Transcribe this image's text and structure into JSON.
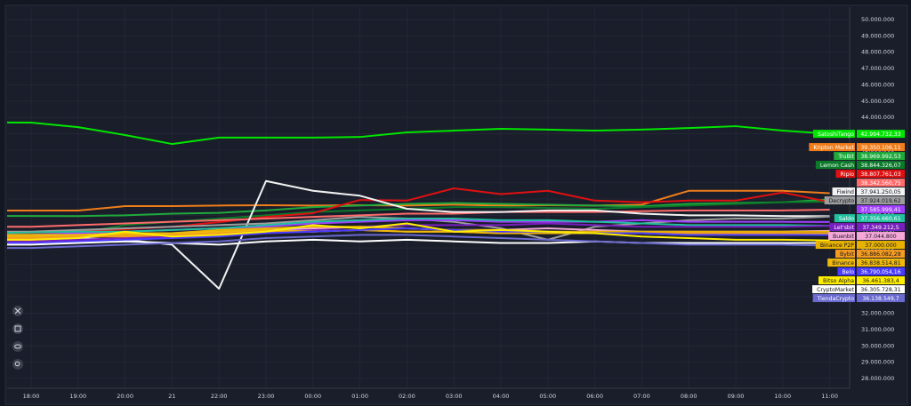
{
  "chart_data": {
    "type": "line",
    "categories": [
      null,
      "18:00",
      "19:00",
      "20:00",
      "21",
      "22:00",
      "23:00",
      "00:00",
      "01:00",
      "02:00",
      "03:00",
      "04:00",
      "05:00",
      "06:00",
      "07:00",
      "08:00",
      "09:00",
      "10:00",
      "11:00"
    ],
    "ylim": [
      27400000,
      50760000
    ],
    "yticks": [
      {
        "value": 28000000,
        "label": "28.000.000"
      },
      {
        "value": 29000000,
        "label": "29.000.000"
      },
      {
        "value": 30000000,
        "label": "30.000.000"
      },
      {
        "value": 31000000,
        "label": "31.000.000"
      },
      {
        "value": 32000000,
        "label": "32.000.000"
      },
      {
        "value": 33000000,
        "label": "33.000.000"
      },
      {
        "value": 34000000,
        "label": "34.000.000"
      },
      {
        "value": 35000000,
        "label": "35.000.000"
      },
      {
        "value": 36000000,
        "label": "36.000.000"
      },
      {
        "value": 37000000,
        "label": "37.000.000"
      },
      {
        "value": 38000000,
        "label": "38.000.000"
      },
      {
        "value": 39000000,
        "label": "39.000.000"
      },
      {
        "value": 40000000,
        "label": "40.000.000"
      },
      {
        "value": 41000000,
        "label": "41.000.000"
      },
      {
        "value": 42000000,
        "label": "42.000.000"
      },
      {
        "value": 43000000,
        "label": "43.000.000"
      },
      {
        "value": 44000000,
        "label": "44.000.000"
      },
      {
        "value": 45000000,
        "label": "45.000.000"
      },
      {
        "value": 46000000,
        "label": "46.000.000"
      },
      {
        "value": 47000000,
        "label": "47.000.000"
      },
      {
        "value": 48000000,
        "label": "48.000.000"
      },
      {
        "value": 49000000,
        "label": "49.000.000"
      },
      {
        "value": 50000000,
        "label": "50.000.000"
      }
    ],
    "grid": true,
    "series": [
      {
        "name": "SatoshiTango",
        "color": "#00e600",
        "values": [
          43700000,
          43680000,
          43400000,
          42920000,
          42370000,
          42760000,
          42760000,
          42760000,
          42800000,
          43080000,
          43190000,
          43300000,
          43250000,
          43190000,
          43250000,
          43350000,
          43460000,
          43190000,
          42994732.33
        ],
        "value_labels": [
          null,
          null,
          null,
          null,
          null,
          null,
          null,
          null,
          null,
          null,
          null,
          null,
          null,
          null,
          null,
          null,
          null,
          null,
          "42.994.732,33"
        ]
      },
      {
        "name": "Kripton Market",
        "color": "#f07d1a",
        "values": [
          38290000,
          38290000,
          38290000,
          38560000,
          38560000,
          38600000,
          38620000,
          38600000,
          38620000,
          38600000,
          38650000,
          38600000,
          38620000,
          38600000,
          38650000,
          39500000,
          39500000,
          39500000,
          39350106.11
        ],
        "value_labels": [
          null,
          null,
          null,
          null,
          null,
          null,
          null,
          null,
          null,
          null,
          null,
          null,
          null,
          null,
          null,
          null,
          null,
          null,
          "39.350.106,11"
        ]
      },
      {
        "name": "TruBit",
        "color": "#1faa3c",
        "values": [
          37950000,
          37960000,
          37950000,
          38000000,
          38100000,
          38150000,
          38300000,
          38500000,
          38600000,
          38700000,
          38750000,
          38700000,
          38650000,
          38600000,
          38550000,
          38700000,
          38750000,
          38800000,
          38969992.53
        ],
        "value_labels": [
          null,
          null,
          null,
          null,
          null,
          null,
          null,
          null,
          null,
          null,
          null,
          null,
          null,
          null,
          null,
          null,
          null,
          null,
          "38.969.992,53"
        ]
      },
      {
        "name": "Lemon Cash",
        "color": "#0b7a2a",
        "values": [
          36200000,
          36300000,
          36900000,
          37400000,
          37600000,
          37800000,
          38000000,
          38200000,
          38300000,
          38400000,
          38500000,
          38500000,
          38450000,
          38400000,
          38500000,
          38600000,
          38700000,
          38800000,
          38844326.07
        ],
        "value_labels": [
          null,
          null,
          null,
          null,
          null,
          null,
          null,
          null,
          null,
          null,
          null,
          null,
          null,
          null,
          null,
          null,
          null,
          null,
          "38.844.326,07"
        ]
      },
      {
        "name": "Ripio",
        "color": "#e01010",
        "values": [
          36900000,
          36930000,
          37000000,
          37150000,
          37300000,
          37580000,
          37900000,
          38130000,
          38940000,
          38900000,
          39650000,
          39300000,
          39500000,
          38900000,
          38800000,
          38900000,
          38900000,
          39400000,
          38807761.03
        ],
        "value_labels": [
          null,
          null,
          null,
          null,
          null,
          null,
          null,
          null,
          null,
          null,
          null,
          null,
          null,
          null,
          null,
          null,
          null,
          null,
          "38.807.761,03"
        ]
      },
      {
        "name": null,
        "color": "#ff6b6b",
        "values": [
          37300000,
          37300000,
          37400000,
          37500000,
          37600000,
          37700000,
          37800000,
          37900000,
          38000000,
          38100000,
          38100000,
          38200000,
          38200000,
          38200000,
          38250000,
          38300000,
          38300000,
          38300000,
          38342560.75
        ],
        "value_labels": [
          null,
          null,
          null,
          null,
          null,
          null,
          null,
          null,
          null,
          null,
          null,
          null,
          null,
          null,
          null,
          null,
          null,
          null,
          "38.342.560,75"
        ]
      },
      {
        "name": "Fiwind",
        "color": "#f2f2f2",
        "values": [
          36500000,
          36500000,
          36600000,
          36500000,
          36200000,
          33500000,
          40100000,
          39500000,
          39200000,
          38400000,
          38200000,
          38200000,
          38300000,
          38300000,
          38100000,
          38000000,
          38000000,
          37950000,
          37941250.05
        ],
        "value_labels": [
          null,
          null,
          null,
          null,
          null,
          null,
          null,
          null,
          null,
          null,
          null,
          null,
          null,
          null,
          null,
          null,
          null,
          null,
          "37.941.250,05"
        ]
      },
      {
        "name": "Decrypto",
        "color": "#9e9e9e",
        "values": [
          37000000,
          37000000,
          37100000,
          37200000,
          37300000,
          37400000,
          37500000,
          37700000,
          37900000,
          37800000,
          37600000,
          37200000,
          36500000,
          37300000,
          37500000,
          37700000,
          37800000,
          37800000,
          37924019.62
        ],
        "value_labels": [
          null,
          null,
          null,
          null,
          null,
          null,
          null,
          null,
          null,
          null,
          null,
          null,
          null,
          null,
          null,
          null,
          null,
          null,
          "37.924.019,62"
        ]
      },
      {
        "name": null,
        "color": "#a040ff",
        "values": [
          36800000,
          36800000,
          36900000,
          37000000,
          37100000,
          37200000,
          37300000,
          37500000,
          37600000,
          37700000,
          37700000,
          37600000,
          37600000,
          37600000,
          37700000,
          37600000,
          37600000,
          37600000,
          37585999.41
        ],
        "value_labels": [
          null,
          null,
          null,
          null,
          null,
          null,
          null,
          null,
          null,
          null,
          null,
          null,
          null,
          null,
          null,
          null,
          null,
          null,
          "37.585.999,41"
        ]
      },
      {
        "name": "Saldo",
        "color": "#20c0a0",
        "values": [
          36900000,
          36950000,
          37000000,
          37000000,
          37100000,
          37200000,
          37400000,
          37600000,
          37700000,
          37800000,
          37800000,
          37700000,
          37700000,
          37600000,
          37500000,
          37400000,
          37400000,
          37400000,
          37356660.61
        ],
        "value_labels": [
          null,
          null,
          null,
          null,
          null,
          null,
          null,
          null,
          null,
          null,
          null,
          null,
          null,
          null,
          null,
          null,
          null,
          null,
          "37.356.660,61"
        ]
      },
      {
        "name": "Let'sbit",
        "color": "#7a1fbf",
        "values": [
          36400000,
          36400000,
          36500000,
          36600000,
          36700000,
          36800000,
          37000000,
          37100000,
          37300000,
          37400000,
          37400000,
          37400000,
          37500000,
          37400000,
          37300000,
          37300000,
          37300000,
          37300000,
          37349212.5
        ],
        "value_labels": [
          null,
          null,
          null,
          null,
          null,
          null,
          null,
          null,
          null,
          null,
          null,
          null,
          null,
          null,
          null,
          null,
          null,
          null,
          "37.349.212,5"
        ]
      },
      {
        "name": "Buenbit",
        "color": "#f5a8d8",
        "values": [
          36600000,
          36600000,
          36700000,
          36800000,
          36800000,
          36900000,
          37100000,
          37200000,
          37300000,
          37200000,
          37100000,
          37100000,
          37200000,
          37100000,
          37000000,
          37000000,
          37000000,
          37000000,
          37044800
        ],
        "value_labels": [
          null,
          null,
          null,
          null,
          null,
          null,
          null,
          null,
          null,
          null,
          null,
          null,
          null,
          null,
          null,
          null,
          null,
          null,
          "37.044.800"
        ]
      },
      {
        "name": "Binance P2P",
        "color": "#e8b200",
        "values": [
          36700000,
          36700000,
          36800000,
          36800000,
          36900000,
          37100000,
          37200000,
          37300000,
          37300000,
          37200000,
          37100000,
          37100000,
          37000000,
          37000000,
          37000000,
          37000000,
          37000000,
          37000000,
          37000000
        ],
        "value_labels": [
          null,
          null,
          null,
          null,
          null,
          null,
          null,
          null,
          null,
          null,
          null,
          null,
          null,
          null,
          null,
          null,
          null,
          null,
          "37.000.000"
        ]
      },
      {
        "name": "Bybit",
        "color": "#f59b20",
        "values": [
          36600000,
          36600000,
          36700000,
          36700000,
          36800000,
          36900000,
          37000000,
          37000000,
          37100000,
          37000000,
          37000000,
          36900000,
          36900000,
          36900000,
          36900000,
          36900000,
          36900000,
          36900000,
          36886082.28
        ],
        "value_labels": [
          null,
          null,
          null,
          null,
          null,
          null,
          null,
          null,
          null,
          null,
          null,
          null,
          null,
          null,
          null,
          null,
          null,
          null,
          "36.886.082,28"
        ]
      },
      {
        "name": "Binance",
        "color": "#f0b90b",
        "values": [
          36800000,
          36800000,
          36800000,
          36900000,
          36900000,
          37000000,
          37100000,
          37000000,
          37100000,
          37000000,
          37000000,
          36900000,
          36900000,
          36900000,
          36900000,
          36800000,
          36800000,
          36800000,
          36838514.81
        ],
        "value_labels": [
          null,
          null,
          null,
          null,
          null,
          null,
          null,
          null,
          null,
          null,
          null,
          null,
          null,
          null,
          null,
          null,
          null,
          null,
          "36.838.514,81"
        ]
      },
      {
        "name": "Belo",
        "color": "#4a3cff",
        "values": [
          36300000,
          36300000,
          36400000,
          36500000,
          36600000,
          36700000,
          36900000,
          37000000,
          37100000,
          37200000,
          37100000,
          37000000,
          37000000,
          36900000,
          36900000,
          36800000,
          36800000,
          36800000,
          36790054.16
        ],
        "value_labels": [
          null,
          null,
          null,
          null,
          null,
          null,
          null,
          null,
          null,
          null,
          null,
          null,
          null,
          null,
          null,
          null,
          null,
          null,
          "36.790.054,16"
        ]
      },
      {
        "name": "Bitso Alpha",
        "color": "#ffee00",
        "values": [
          36500000,
          36500000,
          36600000,
          37000000,
          36700000,
          36800000,
          37000000,
          37400000,
          37200000,
          37500000,
          37000000,
          37100000,
          37000000,
          36900000,
          36700000,
          36600000,
          36500000,
          36500000,
          36461383.4
        ],
        "value_labels": [
          null,
          null,
          null,
          null,
          null,
          null,
          null,
          null,
          null,
          null,
          null,
          null,
          null,
          null,
          null,
          null,
          null,
          null,
          "36.461.383,4"
        ]
      },
      {
        "name": "CryptoMarket",
        "color": "#ffffff",
        "values": [
          36200000,
          36200000,
          36300000,
          36400000,
          36300000,
          36200000,
          36400000,
          36500000,
          36400000,
          36500000,
          36400000,
          36300000,
          36300000,
          36400000,
          36300000,
          36300000,
          36300000,
          36300000,
          36305728.31
        ],
        "value_labels": [
          null,
          null,
          null,
          null,
          null,
          null,
          null,
          null,
          null,
          null,
          null,
          null,
          null,
          null,
          null,
          null,
          null,
          null,
          "36.305.728,31"
        ]
      },
      {
        "name": "TiendaCrypto",
        "color": "#6a6ad0",
        "values": [
          36000000,
          36000000,
          36100000,
          36200000,
          36300000,
          36400000,
          36600000,
          36700000,
          36800000,
          36800000,
          36700000,
          36600000,
          36500000,
          36400000,
          36300000,
          36200000,
          36200000,
          36200000,
          36138549.7
        ],
        "value_labels": [
          null,
          null,
          null,
          null,
          null,
          null,
          null,
          null,
          null,
          null,
          null,
          null,
          null,
          null,
          null,
          null,
          null,
          null,
          "36.138.549,7"
        ]
      }
    ]
  }
}
